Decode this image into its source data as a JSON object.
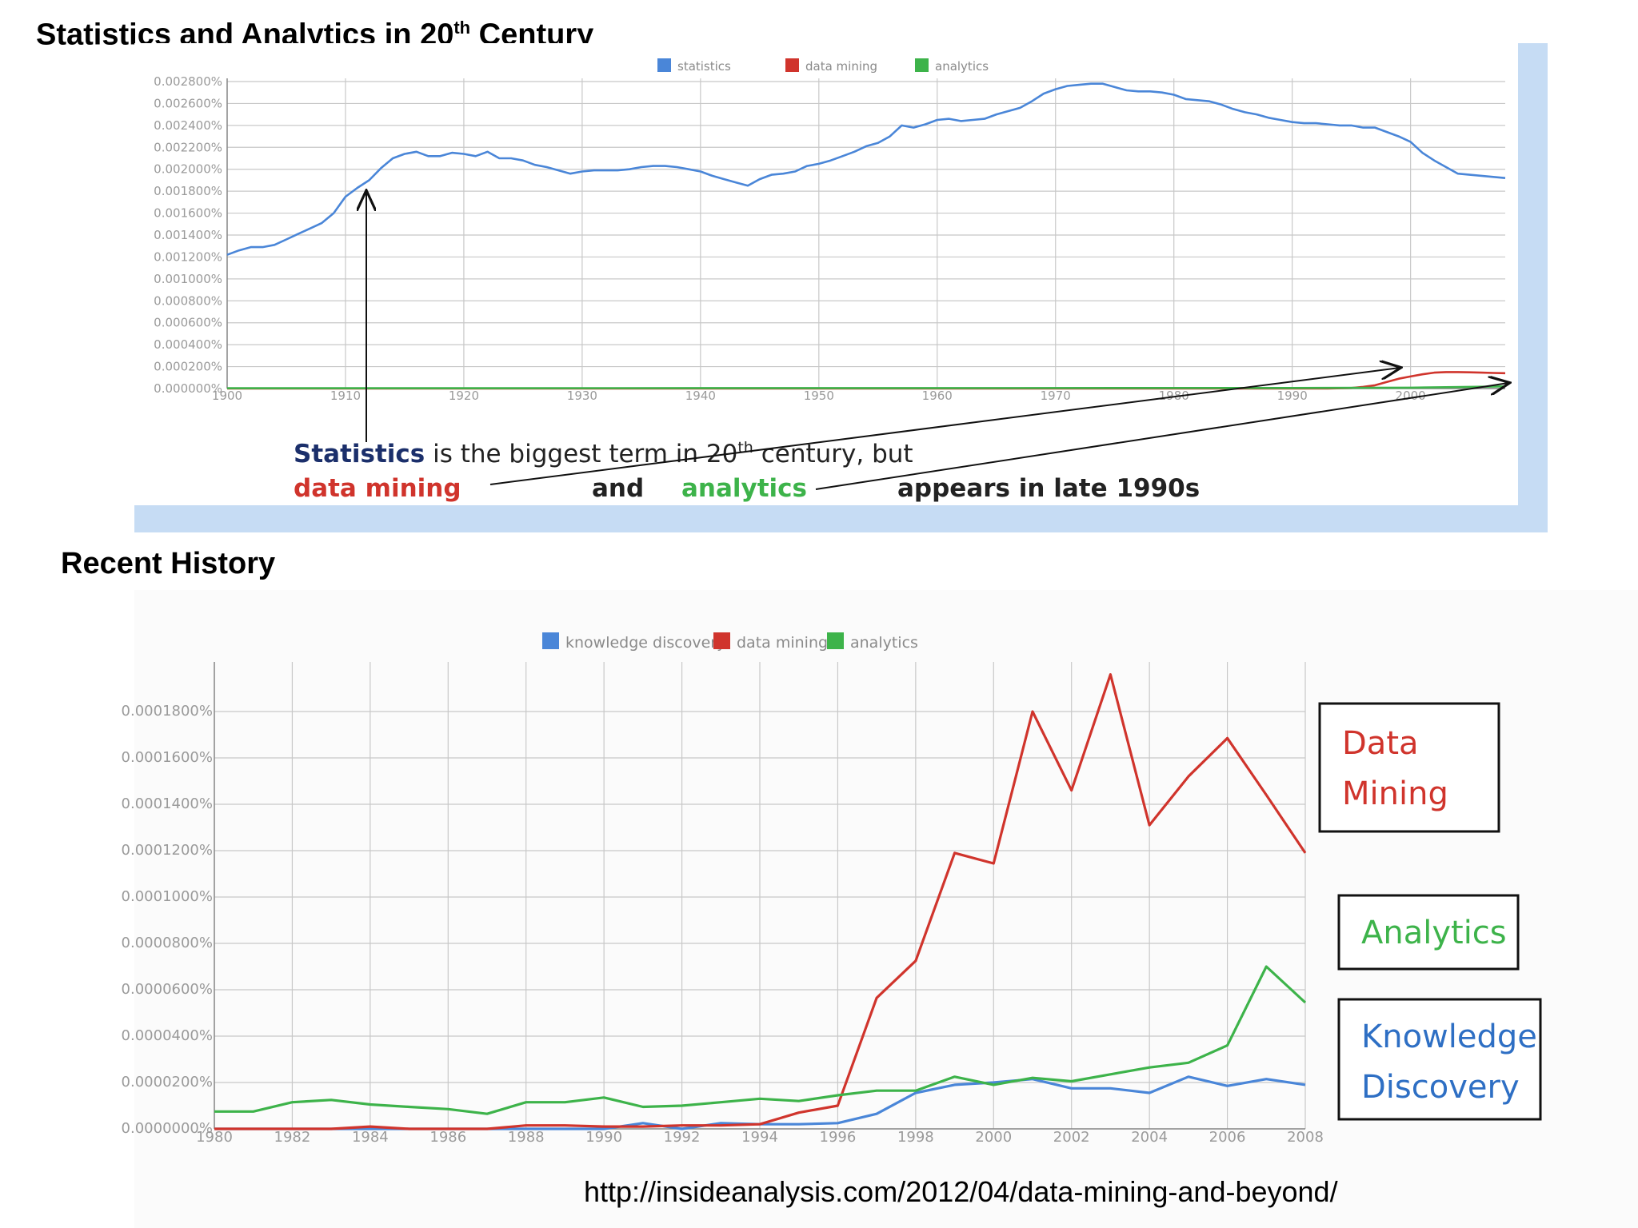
{
  "headings": {
    "chart1_title": "Statistics and Analytics in 20",
    "chart1_title_sup": "th",
    "chart1_title_end": " Century",
    "chart2_title": "Recent History"
  },
  "source_url": "http://insideanalysis.com/2012/04/data-mining-and-beyond/",
  "colors": {
    "blue": "#4a86d8",
    "red": "#d0342c",
    "green": "#3db34a",
    "grid": "#c8c8c8"
  },
  "annotation": {
    "line1_a": "Statistics",
    "line1_b": " is the biggest term in 20",
    "line1_sup": "th",
    "line1_c": " century, but",
    "line2_a": "data mining",
    "line2_b": "and",
    "line2_c": "analytics",
    "line2_d": "appears in late 1990s"
  },
  "callouts": {
    "data_mining": [
      "Data",
      "Mining"
    ],
    "analytics": [
      "Analytics"
    ],
    "knowledge_discovery": [
      "Knowledge",
      "Discovery"
    ]
  },
  "chart_data": [
    {
      "type": "line",
      "title": "Statistics and Analytics in 20th Century",
      "xlim": [
        1900,
        2008
      ],
      "ylim": [
        0,
        0.0028
      ],
      "y_ticks": [
        0,
        0.0002,
        0.0004,
        0.0006,
        0.0008,
        0.001,
        0.0012,
        0.0014,
        0.0016,
        0.0018,
        0.002,
        0.0022,
        0.0024,
        0.0026,
        0.0028
      ],
      "y_tick_labels": [
        "0.000000%",
        "0.000200%",
        "0.000400%",
        "0.000600%",
        "0.000800%",
        "0.001000%",
        "0.001200%",
        "0.001400%",
        "0.001600%",
        "0.001800%",
        "0.002000%",
        "0.002200%",
        "0.002400%",
        "0.002600%",
        "0.002800%"
      ],
      "x_ticks": [
        1900,
        1910,
        1920,
        1930,
        1940,
        1950,
        1960,
        1970,
        1980,
        1990,
        2000
      ],
      "x_tick_labels": [
        "1900",
        "1910",
        "1920",
        "1930",
        "1940",
        "1950",
        "1960",
        "1970",
        "1980",
        "1990",
        "2000"
      ],
      "grid": true,
      "legend": "top-center",
      "series": [
        {
          "name": "statistics",
          "color": "#4a86d8",
          "x": [
            1900,
            1901,
            1902,
            1903,
            1904,
            1905,
            1906,
            1907,
            1908,
            1909,
            1910,
            1911,
            1912,
            1913,
            1914,
            1915,
            1916,
            1917,
            1918,
            1919,
            1920,
            1921,
            1922,
            1923,
            1924,
            1925,
            1926,
            1927,
            1928,
            1929,
            1930,
            1931,
            1932,
            1933,
            1934,
            1935,
            1936,
            1937,
            1938,
            1939,
            1940,
            1941,
            1942,
            1943,
            1944,
            1945,
            1946,
            1947,
            1948,
            1949,
            1950,
            1951,
            1952,
            1953,
            1954,
            1955,
            1956,
            1957,
            1958,
            1959,
            1960,
            1961,
            1962,
            1963,
            1964,
            1965,
            1966,
            1967,
            1968,
            1969,
            1970,
            1971,
            1972,
            1973,
            1974,
            1975,
            1976,
            1977,
            1978,
            1979,
            1980,
            1981,
            1982,
            1983,
            1984,
            1985,
            1986,
            1987,
            1988,
            1989,
            1990,
            1991,
            1992,
            1993,
            1994,
            1995,
            1996,
            1997,
            1998,
            1999,
            2000,
            2001,
            2002,
            2003,
            2004,
            2005,
            2006,
            2007,
            2008
          ],
          "values": [
            0.00122,
            0.00126,
            0.00129,
            0.00129,
            0.00131,
            0.00136,
            0.00141,
            0.00146,
            0.00151,
            0.0016,
            0.00175,
            0.00183,
            0.0019,
            0.00201,
            0.0021,
            0.00214,
            0.00216,
            0.00212,
            0.00212,
            0.00215,
            0.00214,
            0.00212,
            0.00216,
            0.0021,
            0.0021,
            0.00208,
            0.00204,
            0.00202,
            0.00199,
            0.00196,
            0.00198,
            0.00199,
            0.00199,
            0.00199,
            0.002,
            0.00202,
            0.00203,
            0.00203,
            0.00202,
            0.002,
            0.00198,
            0.00194,
            0.00191,
            0.00188,
            0.00185,
            0.00191,
            0.00195,
            0.00196,
            0.00198,
            0.00203,
            0.00205,
            0.00208,
            0.00212,
            0.00216,
            0.00221,
            0.00224,
            0.0023,
            0.0024,
            0.00238,
            0.00241,
            0.00245,
            0.00246,
            0.00244,
            0.00245,
            0.00246,
            0.0025,
            0.00253,
            0.00256,
            0.00262,
            0.00269,
            0.00273,
            0.00276,
            0.00277,
            0.00278,
            0.00278,
            0.00275,
            0.00272,
            0.00271,
            0.00271,
            0.0027,
            0.00268,
            0.00264,
            0.00263,
            0.00262,
            0.00259,
            0.00255,
            0.00252,
            0.0025,
            0.00247,
            0.00245,
            0.00243,
            0.00242,
            0.00242,
            0.00241,
            0.0024,
            0.0024,
            0.00238,
            0.00238,
            0.00234,
            0.0023,
            0.00225,
            0.00215,
            0.00208,
            0.00202,
            0.00196,
            0.00195,
            0.00194,
            0.00193,
            0.00192
          ]
        },
        {
          "name": "data mining",
          "color": "#d0342c",
          "x": [
            1900,
            1990,
            1993,
            1995,
            1996,
            1997,
            1998,
            1999,
            2000,
            2001,
            2002,
            2003,
            2004,
            2005,
            2006,
            2007,
            2008
          ],
          "values": [
            0,
            0,
            0,
            5e-06,
            1.5e-05,
            3e-05,
            6e-05,
            9e-05,
            0.00011,
            0.00013,
            0.000145,
            0.00015,
            0.00015,
            0.000148,
            0.000145,
            0.000142,
            0.00014
          ]
        },
        {
          "name": "analytics",
          "color": "#3db34a",
          "x": [
            1900,
            1990,
            2000,
            2005,
            2008
          ],
          "values": [
            3e-06,
            5e-06,
            8e-06,
            1.5e-05,
            2e-05
          ]
        }
      ]
    },
    {
      "type": "line",
      "title": "Recent History",
      "xlim": [
        1980,
        2008
      ],
      "ylim": [
        0,
        0.0002
      ],
      "y_ticks": [
        0,
        2e-05,
        4e-05,
        6e-05,
        8e-05,
        0.0001,
        0.00012,
        0.00014,
        0.00016,
        0.00018
      ],
      "y_tick_labels": [
        "0.0000000%",
        "0.0000200%",
        "0.0000400%",
        "0.0000600%",
        "0.0000800%",
        "0.0001000%",
        "0.0001200%",
        "0.0001400%",
        "0.0001600%",
        "0.0001800%"
      ],
      "x_ticks": [
        1980,
        1982,
        1984,
        1986,
        1988,
        1990,
        1992,
        1994,
        1996,
        1998,
        2000,
        2002,
        2004,
        2006,
        2008
      ],
      "x_tick_labels": [
        "1980",
        "1982",
        "1984",
        "1986",
        "1988",
        "1990",
        "1992",
        "1994",
        "1996",
        "1998",
        "2000",
        "2002",
        "2004",
        "2006",
        "2008"
      ],
      "grid": true,
      "legend": "top-center",
      "series": [
        {
          "name": "knowledge discovery",
          "color": "#4a86d8",
          "x": [
            1980,
            1981,
            1982,
            1983,
            1984,
            1985,
            1986,
            1987,
            1988,
            1989,
            1990,
            1991,
            1992,
            1993,
            1994,
            1995,
            1996,
            1997,
            1998,
            1999,
            2000,
            2001,
            2002,
            2003,
            2004,
            2005,
            2006,
            2007,
            2008
          ],
          "values": [
            0,
            0,
            0,
            0,
            0,
            0,
            0,
            0,
            0,
            0,
            0,
            2.5e-06,
            0,
            2.5e-06,
            2e-06,
            2e-06,
            2.5e-06,
            6.5e-06,
            1.55e-05,
            1.9e-05,
            2e-05,
            2.15e-05,
            1.75e-05,
            1.75e-05,
            1.55e-05,
            2.25e-05,
            1.85e-05,
            2.15e-05,
            1.9e-05
          ]
        },
        {
          "name": "data mining",
          "color": "#d0342c",
          "x": [
            1980,
            1981,
            1982,
            1983,
            1984,
            1985,
            1986,
            1987,
            1988,
            1989,
            1990,
            1991,
            1992,
            1993,
            1994,
            1995,
            1996,
            1997,
            1998,
            1999,
            2000,
            2001,
            2002,
            2003,
            2004,
            2005,
            2006,
            2007,
            2008
          ],
          "values": [
            0,
            0,
            0,
            0,
            1e-06,
            0,
            0,
            0,
            1.5e-06,
            1.5e-06,
            1e-06,
            1e-06,
            1.5e-06,
            1.5e-06,
            2e-06,
            7e-06,
            1e-05,
            5.65e-05,
            7.25e-05,
            0.000119,
            0.0001145,
            0.00018,
            0.000146,
            0.000196,
            0.000131,
            0.000152,
            0.0001685,
            0.000144,
            0.000119
          ]
        },
        {
          "name": "analytics",
          "color": "#3db34a",
          "x": [
            1980,
            1981,
            1982,
            1983,
            1984,
            1985,
            1986,
            1987,
            1988,
            1989,
            1990,
            1991,
            1992,
            1993,
            1994,
            1995,
            1996,
            1997,
            1998,
            1999,
            2000,
            2001,
            2002,
            2003,
            2004,
            2005,
            2006,
            2007,
            2008
          ],
          "values": [
            7.5e-06,
            7.5e-06,
            1.15e-05,
            1.25e-05,
            1.05e-05,
            9.5e-06,
            8.5e-06,
            6.5e-06,
            1.15e-05,
            1.15e-05,
            1.35e-05,
            9.5e-06,
            1e-05,
            1.15e-05,
            1.3e-05,
            1.2e-05,
            1.45e-05,
            1.65e-05,
            1.65e-05,
            2.25e-05,
            1.9e-05,
            2.2e-05,
            2.05e-05,
            2.35e-05,
            2.65e-05,
            2.85e-05,
            3.6e-05,
            7e-05,
            5.45e-05
          ]
        }
      ]
    }
  ]
}
